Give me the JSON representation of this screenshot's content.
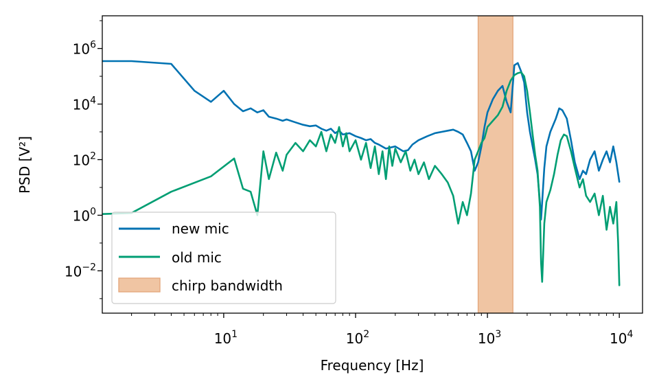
{
  "chart_data": {
    "type": "line",
    "title": "",
    "xlabel": "Frequency [Hz]",
    "ylabel": "PSD [V²]",
    "xscale": "log",
    "yscale": "log",
    "xlim": [
      1.2,
      15000
    ],
    "ylim": [
      0.0003,
      15000000
    ],
    "grid": false,
    "legend_position": "lower-left",
    "x_ticks": [
      {
        "value": 10,
        "base": "10",
        "exp": "1"
      },
      {
        "value": 100,
        "base": "10",
        "exp": "2"
      },
      {
        "value": 1000,
        "base": "10",
        "exp": "3"
      },
      {
        "value": 10000,
        "base": "10",
        "exp": "4"
      }
    ],
    "y_ticks": [
      {
        "value": 0.01,
        "base": "10",
        "exp": "−2"
      },
      {
        "value": 1,
        "base": "10",
        "exp": "0"
      },
      {
        "value": 100,
        "base": "10",
        "exp": "2"
      },
      {
        "value": 10000,
        "base": "10",
        "exp": "4"
      },
      {
        "value": 1000000,
        "base": "10",
        "exp": "6"
      }
    ],
    "band": {
      "name": "chirp bandwidth",
      "x_range": [
        850,
        1560
      ],
      "color": "#f0c5a3",
      "edge_color": "#e3a579"
    },
    "series": [
      {
        "name": "new mic",
        "color": "#0072b2",
        "points": [
          [
            1.2,
            350000
          ],
          [
            2,
            350000
          ],
          [
            4,
            280000
          ],
          [
            6,
            30000
          ],
          [
            8,
            12000
          ],
          [
            10,
            30000
          ],
          [
            12,
            10000
          ],
          [
            14,
            5500
          ],
          [
            16,
            7000
          ],
          [
            18,
            5000
          ],
          [
            20,
            6000
          ],
          [
            22,
            3500
          ],
          [
            25,
            3000
          ],
          [
            28,
            2500
          ],
          [
            30,
            2800
          ],
          [
            35,
            2200
          ],
          [
            40,
            1800
          ],
          [
            45,
            1600
          ],
          [
            50,
            1700
          ],
          [
            55,
            1300
          ],
          [
            60,
            1100
          ],
          [
            65,
            1300
          ],
          [
            70,
            900
          ],
          [
            75,
            1100
          ],
          [
            80,
            800
          ],
          [
            90,
            900
          ],
          [
            100,
            700
          ],
          [
            110,
            600
          ],
          [
            120,
            500
          ],
          [
            130,
            550
          ],
          [
            140,
            400
          ],
          [
            150,
            350
          ],
          [
            170,
            250
          ],
          [
            200,
            300
          ],
          [
            230,
            200
          ],
          [
            250,
            220
          ],
          [
            270,
            350
          ],
          [
            300,
            500
          ],
          [
            350,
            700
          ],
          [
            400,
            900
          ],
          [
            450,
            1000
          ],
          [
            500,
            1100
          ],
          [
            550,
            1200
          ],
          [
            600,
            1000
          ],
          [
            650,
            800
          ],
          [
            700,
            400
          ],
          [
            750,
            200
          ],
          [
            800,
            40
          ],
          [
            850,
            80
          ],
          [
            900,
            300
          ],
          [
            950,
            1500
          ],
          [
            1000,
            5000
          ],
          [
            1100,
            15000
          ],
          [
            1200,
            30000
          ],
          [
            1300,
            45000
          ],
          [
            1400,
            12000
          ],
          [
            1500,
            5000
          ],
          [
            1600,
            250000
          ],
          [
            1700,
            300000
          ],
          [
            1800,
            150000
          ],
          [
            1900,
            60000
          ],
          [
            2000,
            5000
          ],
          [
            2100,
            1000
          ],
          [
            2200,
            300
          ],
          [
            2300,
            100
          ],
          [
            2400,
            30
          ],
          [
            2500,
            3
          ],
          [
            2550,
            0.7
          ],
          [
            2600,
            3
          ],
          [
            2700,
            50
          ],
          [
            2800,
            300
          ],
          [
            3000,
            1000
          ],
          [
            3300,
            3000
          ],
          [
            3500,
            7000
          ],
          [
            3700,
            6000
          ],
          [
            4000,
            3000
          ],
          [
            4300,
            500
          ],
          [
            4600,
            80
          ],
          [
            5000,
            20
          ],
          [
            5300,
            40
          ],
          [
            5600,
            30
          ],
          [
            6000,
            100
          ],
          [
            6500,
            200
          ],
          [
            7000,
            40
          ],
          [
            7500,
            100
          ],
          [
            8000,
            200
          ],
          [
            8500,
            80
          ],
          [
            9000,
            300
          ],
          [
            9500,
            80
          ],
          [
            10000,
            16
          ]
        ]
      },
      {
        "name": "old mic",
        "color": "#009e73",
        "points": [
          [
            1.2,
            1.1
          ],
          [
            2,
            1.2
          ],
          [
            4,
            7
          ],
          [
            8,
            25
          ],
          [
            12,
            110
          ],
          [
            14,
            9
          ],
          [
            16,
            7
          ],
          [
            18,
            1
          ],
          [
            20,
            200
          ],
          [
            22,
            20
          ],
          [
            25,
            180
          ],
          [
            28,
            40
          ],
          [
            30,
            150
          ],
          [
            35,
            400
          ],
          [
            40,
            200
          ],
          [
            45,
            500
          ],
          [
            50,
            300
          ],
          [
            55,
            1000
          ],
          [
            60,
            200
          ],
          [
            65,
            800
          ],
          [
            70,
            400
          ],
          [
            75,
            1500
          ],
          [
            80,
            300
          ],
          [
            85,
            900
          ],
          [
            90,
            200
          ],
          [
            100,
            500
          ],
          [
            110,
            100
          ],
          [
            120,
            400
          ],
          [
            130,
            50
          ],
          [
            140,
            300
          ],
          [
            150,
            30
          ],
          [
            160,
            200
          ],
          [
            170,
            20
          ],
          [
            180,
            300
          ],
          [
            190,
            60
          ],
          [
            200,
            250
          ],
          [
            220,
            80
          ],
          [
            240,
            200
          ],
          [
            260,
            40
          ],
          [
            280,
            100
          ],
          [
            300,
            30
          ],
          [
            330,
            80
          ],
          [
            360,
            20
          ],
          [
            400,
            60
          ],
          [
            450,
            30
          ],
          [
            500,
            15
          ],
          [
            550,
            5
          ],
          [
            600,
            0.5
          ],
          [
            650,
            3
          ],
          [
            700,
            1
          ],
          [
            750,
            6
          ],
          [
            800,
            100
          ],
          [
            850,
            200
          ],
          [
            900,
            400
          ],
          [
            950,
            600
          ],
          [
            1000,
            1500
          ],
          [
            1100,
            2500
          ],
          [
            1200,
            4000
          ],
          [
            1300,
            8000
          ],
          [
            1400,
            30000
          ],
          [
            1500,
            70000
          ],
          [
            1600,
            110000
          ],
          [
            1700,
            130000
          ],
          [
            1800,
            140000
          ],
          [
            1900,
            100000
          ],
          [
            2000,
            30000
          ],
          [
            2100,
            5000
          ],
          [
            2200,
            800
          ],
          [
            2300,
            150
          ],
          [
            2400,
            40
          ],
          [
            2500,
            2
          ],
          [
            2550,
            0.02
          ],
          [
            2600,
            0.004
          ],
          [
            2700,
            0.5
          ],
          [
            2800,
            3
          ],
          [
            3000,
            8
          ],
          [
            3200,
            30
          ],
          [
            3400,
            150
          ],
          [
            3600,
            500
          ],
          [
            3800,
            800
          ],
          [
            4000,
            700
          ],
          [
            4300,
            200
          ],
          [
            4600,
            50
          ],
          [
            5000,
            10
          ],
          [
            5300,
            20
          ],
          [
            5600,
            5
          ],
          [
            6000,
            3
          ],
          [
            6500,
            6
          ],
          [
            7000,
            1
          ],
          [
            7500,
            5
          ],
          [
            8000,
            0.3
          ],
          [
            8500,
            2
          ],
          [
            9000,
            0.5
          ],
          [
            9500,
            3
          ],
          [
            9800,
            0.1
          ],
          [
            10000,
            0.003
          ]
        ]
      }
    ]
  }
}
